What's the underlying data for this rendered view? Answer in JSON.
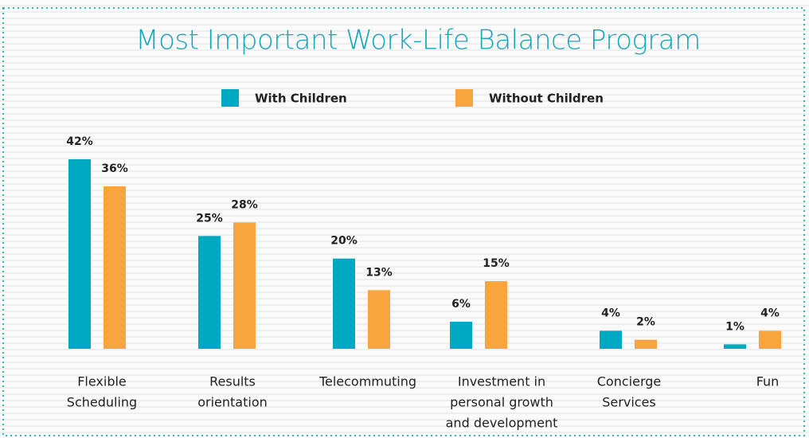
{
  "chart_data": {
    "type": "bar",
    "title": "Most Important Work-Life Balance Program",
    "categories": [
      [
        "Flexible",
        "Scheduling"
      ],
      [
        "Results",
        "orientation"
      ],
      [
        "Telecommuting"
      ],
      [
        "Investment in",
        "personal growth",
        "and development"
      ],
      [
        "Concierge",
        "Services"
      ],
      [
        "Fun"
      ]
    ],
    "series": [
      {
        "name": "With Children",
        "color": "#00a9c2",
        "values": [
          42,
          25,
          20,
          6,
          4,
          1
        ],
        "value_labels": [
          "42%",
          "25%",
          "20%",
          "6%",
          "4%",
          "1%"
        ]
      },
      {
        "name": "Without Children",
        "color": "#f9a53f",
        "values": [
          36,
          28,
          13,
          15,
          2,
          4
        ],
        "value_labels": [
          "36%",
          "28%",
          "13%",
          "15%",
          "2%",
          "4%"
        ]
      }
    ]
  }
}
